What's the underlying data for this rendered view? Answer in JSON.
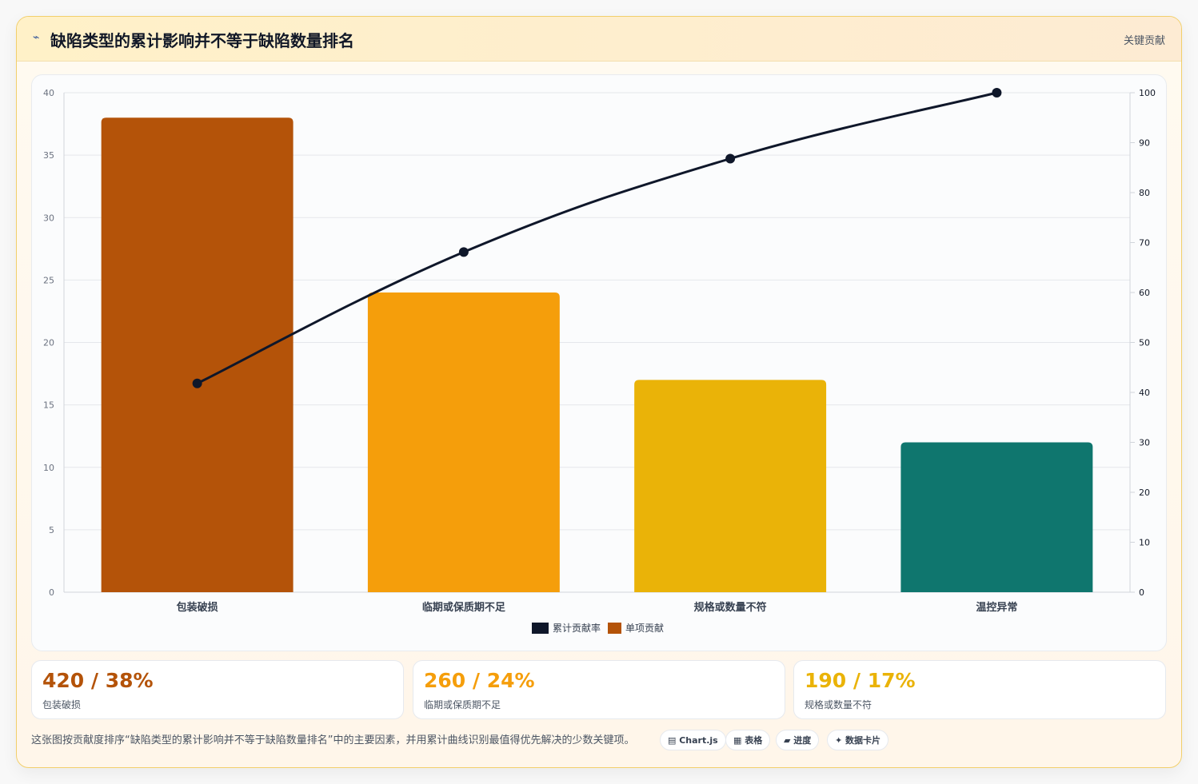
{
  "header": {
    "title": "缺陷类型的累计影响并不等于缺陷数量排名",
    "tag": "关键贡献"
  },
  "colors": {
    "c1": "#b45309",
    "c2": "#f59e0b",
    "c3": "#eab308",
    "c4": "#0f766e",
    "line": "#0f172a"
  },
  "chart_data": {
    "type": "bar",
    "categories": [
      "包装破损",
      "临期或保质期不足",
      "规格或数量不符",
      "温控异常"
    ],
    "series": [
      {
        "name": "单项贡献",
        "type": "bar",
        "values": [
          38,
          24,
          17,
          12
        ]
      },
      {
        "name": "累计贡献率",
        "type": "line",
        "axis": "right",
        "values": [
          41.8,
          68.1,
          86.8,
          100
        ]
      }
    ],
    "ylim": [
      0,
      40
    ],
    "yticks": [
      0,
      5,
      10,
      15,
      20,
      25,
      30,
      35,
      40
    ],
    "y2lim": [
      0,
      100
    ],
    "y2ticks": [
      0,
      10,
      20,
      30,
      40,
      50,
      60,
      70,
      80,
      90,
      100
    ],
    "legend": {
      "position": "bottom",
      "items": [
        "累计贡献率",
        "单项贡献"
      ]
    },
    "grid": true
  },
  "stats": [
    {
      "value": "420 / 38%",
      "label": "包装破损"
    },
    {
      "value": "260 / 24%",
      "label": "临期或保质期不足"
    },
    {
      "value": "190 / 17%",
      "label": "规格或数量不符"
    }
  ],
  "footer": {
    "description": "这张图按贡献度排序“缺陷类型的累计影响并不等于缺陷数量排名”中的主要因素，并用累计曲线识别最值得优先解决的少数关键项。",
    "chips": [
      "▤ Chart.js",
      "▦ 表格",
      "▰ 进度",
      "✦ 数据卡片"
    ]
  }
}
